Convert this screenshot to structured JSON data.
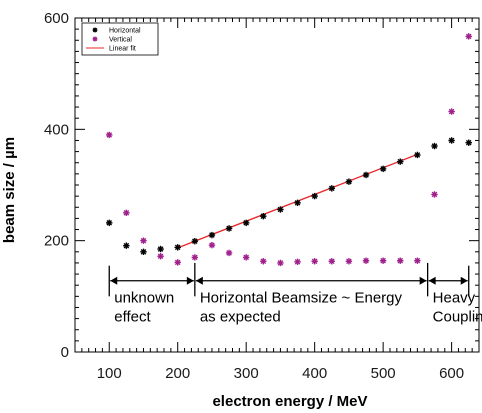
{
  "chart_data": {
    "type": "scatter",
    "xlabel": "electron energy / MeV",
    "ylabel": "beam size / µm",
    "xlim": [
      50,
      640
    ],
    "ylim": [
      0,
      600
    ],
    "xticks": [
      100,
      200,
      300,
      400,
      500,
      600
    ],
    "yticks": [
      0,
      200,
      400,
      600
    ],
    "grid": false,
    "legend_position": "top-left",
    "series": [
      {
        "name": "Horizontal",
        "marker": "asterisk",
        "color": "#000000",
        "points": [
          [
            100,
            232
          ],
          [
            125,
            191
          ],
          [
            150,
            180
          ],
          [
            175,
            185
          ],
          [
            200,
            188
          ],
          [
            225,
            199
          ],
          [
            250,
            210
          ],
          [
            275,
            222
          ],
          [
            300,
            232
          ],
          [
            325,
            244
          ],
          [
            350,
            256
          ],
          [
            375,
            268
          ],
          [
            400,
            280
          ],
          [
            425,
            294
          ],
          [
            450,
            306
          ],
          [
            475,
            318
          ],
          [
            500,
            329
          ],
          [
            525,
            342
          ],
          [
            550,
            354
          ],
          [
            575,
            370
          ],
          [
            600,
            380
          ],
          [
            625,
            376
          ]
        ]
      },
      {
        "name": "Vertical",
        "marker": "asterisk",
        "color": "#a0208c",
        "points": [
          [
            100,
            390
          ],
          [
            125,
            250
          ],
          [
            150,
            200
          ],
          [
            175,
            172
          ],
          [
            200,
            161
          ],
          [
            225,
            170
          ],
          [
            250,
            192
          ],
          [
            275,
            178
          ],
          [
            300,
            170
          ],
          [
            325,
            163
          ],
          [
            350,
            160
          ],
          [
            375,
            162
          ],
          [
            400,
            163
          ],
          [
            425,
            163
          ],
          [
            450,
            163
          ],
          [
            475,
            164
          ],
          [
            500,
            164
          ],
          [
            525,
            164
          ],
          [
            550,
            164
          ],
          [
            575,
            283
          ],
          [
            600,
            432
          ],
          [
            625,
            567
          ]
        ]
      },
      {
        "name": "Linear fit",
        "type": "line",
        "color": "#e8262a",
        "points": [
          [
            200,
            187
          ],
          [
            550,
            355
          ]
        ]
      }
    ],
    "regions": [
      {
        "label_lines": [
          "unknown",
          "effect"
        ],
        "x_start": 100,
        "x_end": 225
      },
      {
        "label_lines": [
          "Horizontal Beamsize ~ Energy",
          "as expected"
        ],
        "x_start": 225,
        "x_end": 565
      },
      {
        "label_lines": [
          "Heavy",
          "Coupling"
        ],
        "x_start": 565,
        "x_end": 625
      }
    ],
    "region_arrow_y": 128,
    "boundary_lines": [
      {
        "x": 100,
        "y_top": 155,
        "y_bottom": 100
      },
      {
        "x": 225,
        "y_top": 160,
        "y_bottom": 100
      },
      {
        "x": 565,
        "y_top": 160,
        "y_bottom": 100
      },
      {
        "x": 625,
        "y_top": 155,
        "y_bottom": 100
      }
    ]
  }
}
